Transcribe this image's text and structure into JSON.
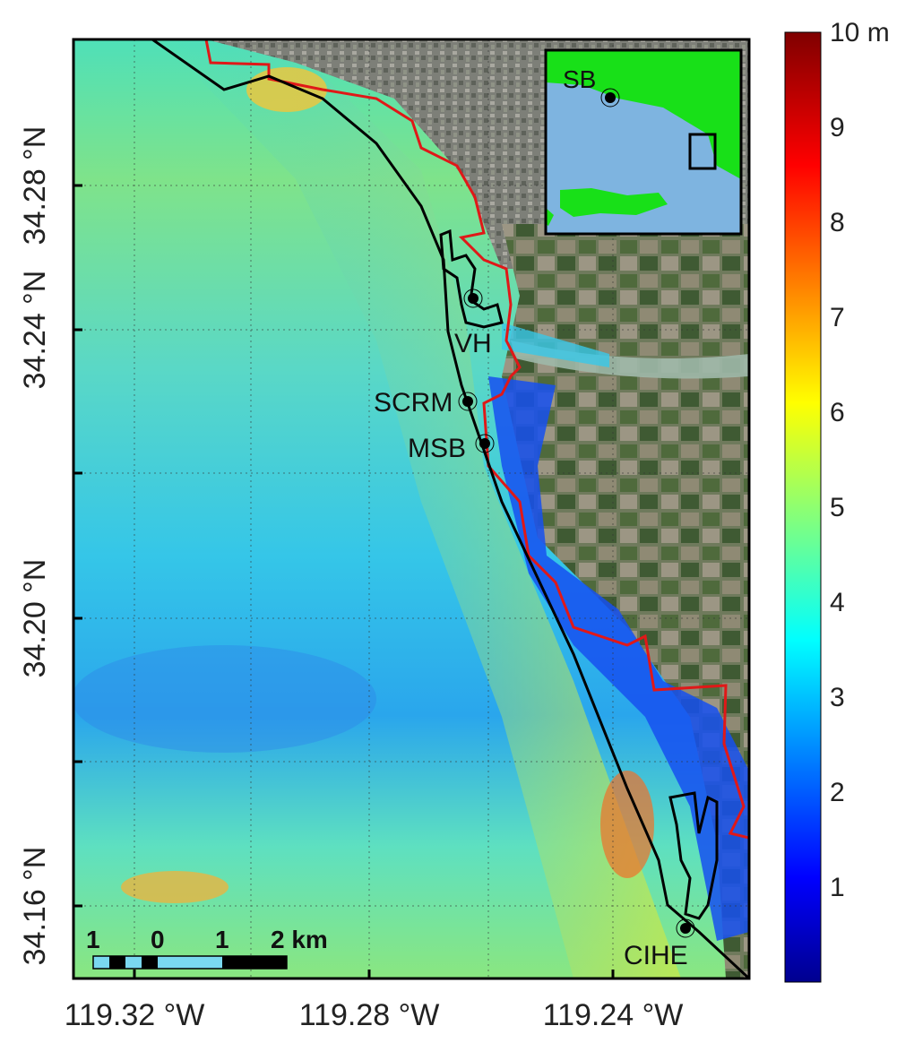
{
  "map": {
    "lat_ticks": [
      "34.28 °N",
      "34.24 °N",
      "34.20 °N",
      "34.16 °N"
    ],
    "lon_ticks": [
      "119.32 °W",
      "119.28 °W",
      "119.24 °W"
    ],
    "sites": [
      {
        "id": "vh",
        "label": "VH"
      },
      {
        "id": "scrm",
        "label": "SCRM"
      },
      {
        "id": "msb",
        "label": "MSB"
      },
      {
        "id": "cihe",
        "label": "CIHE"
      }
    ],
    "scale_bar": {
      "labels": [
        "1",
        "0",
        "1",
        "2 km"
      ]
    },
    "inset": {
      "label": "SB"
    },
    "colorbar": {
      "ticks": [
        "10 m",
        "9",
        "8",
        "7",
        "6",
        "5",
        "4",
        "3",
        "2",
        "1"
      ],
      "range": [
        0,
        10
      ]
    }
  },
  "colors": {
    "tsunami_extent_line": "#e01818",
    "coastline_line": "#000000",
    "inset_land": "#18e018",
    "inset_water": "#7eb4e0"
  }
}
